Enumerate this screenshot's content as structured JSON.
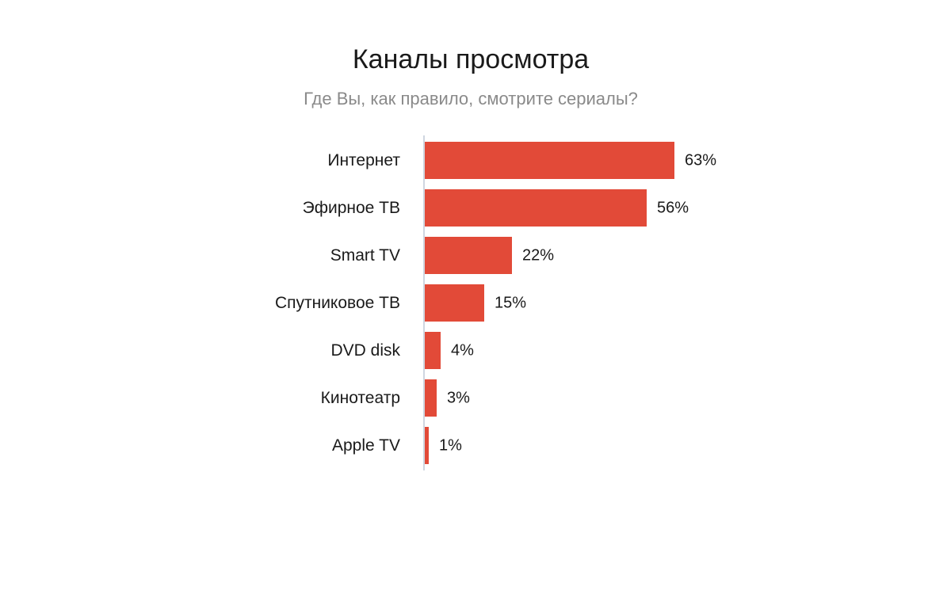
{
  "chart_data": {
    "type": "bar",
    "orientation": "horizontal",
    "title": "Каналы просмотра",
    "subtitle": "Где Вы, как правило, смотрите сериалы?",
    "categories": [
      "Интернет",
      "Эфирное ТВ",
      "Smart TV",
      "Спутниковое ТВ",
      "DVD disk",
      "Кинотеатр",
      "Apple TV"
    ],
    "values": [
      63,
      56,
      22,
      15,
      4,
      3,
      1
    ],
    "value_labels": [
      "63%",
      "56%",
      "22%",
      "15%",
      "4%",
      "3%",
      "1%"
    ],
    "unit": "%",
    "xlim": [
      0,
      63
    ],
    "grid": false,
    "legend": "none",
    "bar_color": "#e24a38",
    "axis_color": "#cfd6e0"
  }
}
